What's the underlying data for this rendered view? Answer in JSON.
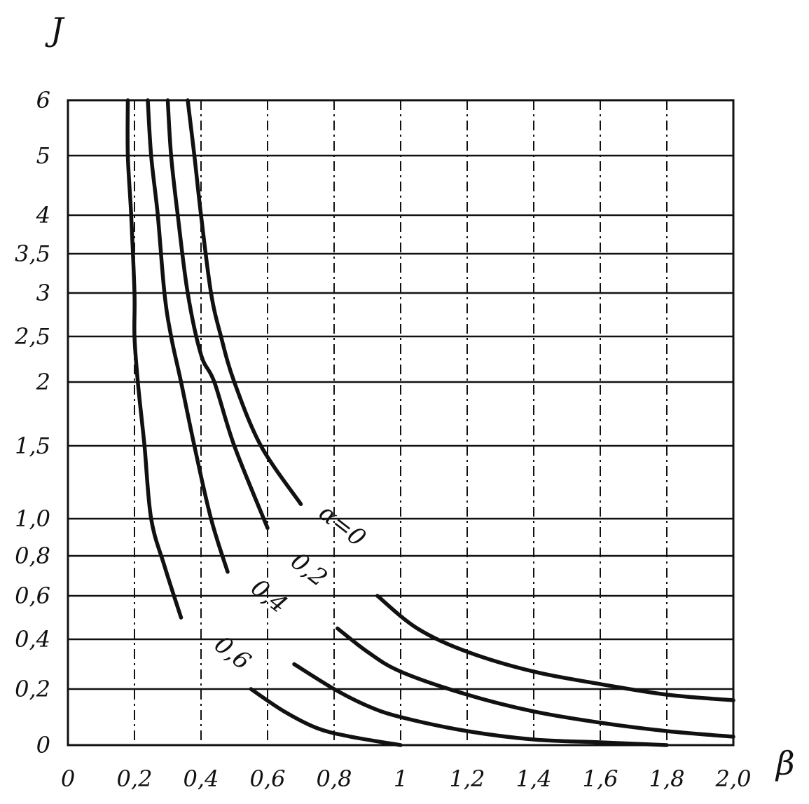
{
  "chart_data": {
    "type": "line",
    "title": "",
    "xlabel": "β",
    "ylabel": "J",
    "xlim": [
      0,
      2.0
    ],
    "x_ticks": [
      "0",
      "0,2",
      "0,4",
      "0,6",
      "0,8",
      "1",
      "1,2",
      "1,4",
      "1,6",
      "1,8",
      "2,0"
    ],
    "x_tick_values": [
      0,
      0.2,
      0.4,
      0.6,
      0.8,
      1.0,
      1.2,
      1.4,
      1.6,
      1.8,
      2.0
    ],
    "y_ticks": [
      "0",
      "0,2",
      "0,4",
      "0,6",
      "0,8",
      "1,0",
      "1,5",
      "2",
      "2,5",
      "3",
      "3,5",
      "4",
      "5",
      "6"
    ],
    "y_tick_values": [
      0,
      0.2,
      0.4,
      0.6,
      0.8,
      1.0,
      1.5,
      2.0,
      2.5,
      3.0,
      3.5,
      4.0,
      5.0,
      6.0
    ],
    "grid": true,
    "series": [
      {
        "name": "α=0",
        "label": "α=0",
        "values_upper": [
          [
            0.36,
            6.0
          ],
          [
            0.38,
            5.0
          ],
          [
            0.4,
            4.0
          ],
          [
            0.43,
            3.0
          ],
          [
            0.46,
            2.5
          ],
          [
            0.5,
            2.0
          ],
          [
            0.58,
            1.5
          ],
          [
            0.7,
            1.1
          ]
        ],
        "values_lower": [
          [
            0.93,
            0.6
          ],
          [
            1.05,
            0.45
          ],
          [
            1.2,
            0.35
          ],
          [
            1.4,
            0.27
          ],
          [
            1.6,
            0.22
          ],
          [
            1.8,
            0.18
          ],
          [
            2.0,
            0.16
          ]
        ]
      },
      {
        "name": "0,2",
        "label": "0,2",
        "values_upper": [
          [
            0.3,
            6.0
          ],
          [
            0.31,
            5.0
          ],
          [
            0.33,
            4.0
          ],
          [
            0.36,
            3.0
          ],
          [
            0.4,
            2.3
          ],
          [
            0.44,
            2.0
          ],
          [
            0.5,
            1.5
          ],
          [
            0.6,
            0.95
          ]
        ],
        "values_lower": [
          [
            0.81,
            0.45
          ],
          [
            0.9,
            0.35
          ],
          [
            1.0,
            0.27
          ],
          [
            1.2,
            0.18
          ],
          [
            1.4,
            0.12
          ],
          [
            1.6,
            0.08
          ],
          [
            1.8,
            0.05
          ],
          [
            2.0,
            0.03
          ]
        ]
      },
      {
        "name": "0,4",
        "label": "0,4",
        "values_upper": [
          [
            0.24,
            6.0
          ],
          [
            0.25,
            5.0
          ],
          [
            0.27,
            4.0
          ],
          [
            0.29,
            3.0
          ],
          [
            0.31,
            2.5
          ],
          [
            0.34,
            2.0
          ],
          [
            0.38,
            1.5
          ],
          [
            0.43,
            1.0
          ],
          [
            0.48,
            0.72
          ]
        ],
        "values_lower": [
          [
            0.68,
            0.3
          ],
          [
            0.8,
            0.2
          ],
          [
            0.9,
            0.14
          ],
          [
            1.0,
            0.1
          ],
          [
            1.2,
            0.05
          ],
          [
            1.4,
            0.02
          ],
          [
            1.6,
            0.01
          ],
          [
            1.8,
            0.0
          ]
        ]
      },
      {
        "name": "0,6",
        "label": "0,6",
        "values_upper": [
          [
            0.18,
            6.0
          ],
          [
            0.18,
            5.0
          ],
          [
            0.19,
            4.0
          ],
          [
            0.2,
            3.0
          ],
          [
            0.2,
            2.5
          ],
          [
            0.21,
            2.0
          ],
          [
            0.23,
            1.5
          ],
          [
            0.25,
            1.0
          ],
          [
            0.29,
            0.75
          ],
          [
            0.34,
            0.5
          ]
        ],
        "values_lower": [
          [
            0.55,
            0.2
          ],
          [
            0.65,
            0.12
          ],
          [
            0.75,
            0.06
          ],
          [
            0.85,
            0.03
          ],
          [
            1.0,
            0.0
          ]
        ]
      }
    ]
  }
}
